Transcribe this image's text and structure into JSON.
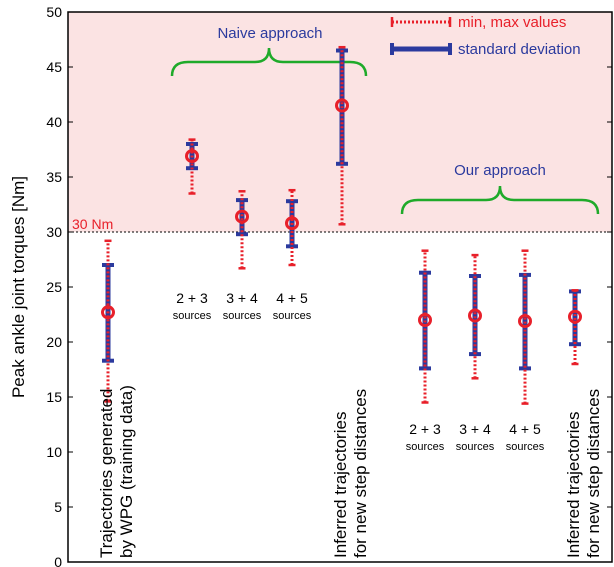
{
  "chart_data": {
    "type": "errorbar",
    "ylabel": "Peak ankle joint torques  [Nm]",
    "ylim": [
      0,
      50
    ],
    "yticks": [
      0,
      5,
      10,
      15,
      20,
      25,
      30,
      35,
      40,
      45,
      50
    ],
    "grid": false,
    "threshold": {
      "value": 30,
      "label": "30 Nm"
    },
    "legend": {
      "position": "top-right",
      "items": [
        {
          "label": "min, max values",
          "style": "dotted",
          "color": "#e8202a"
        },
        {
          "label": "standard deviation",
          "style": "solid",
          "color": "#2b3a9e"
        }
      ]
    },
    "groups": [
      {
        "label": "Naive approach",
        "color": "#2b3a9e",
        "bracket_color": "#1faa2a"
      },
      {
        "label": "Our approach",
        "color": "#2b3a9e",
        "bracket_color": "#1faa2a"
      }
    ],
    "points": [
      {
        "label_lines": [
          "Trajectories generated",
          "by WPG (training data)"
        ],
        "label_orientation": "vertical",
        "mean": 22.7,
        "std_low": 18.3,
        "std_high": 27.0,
        "min": 14.6,
        "max": 29.2
      },
      {
        "label_lines": [
          "2 + 3",
          "sources"
        ],
        "label_orientation": "horizontal",
        "mean": 36.9,
        "std_low": 35.8,
        "std_high": 38.0,
        "min": 33.5,
        "max": 38.4
      },
      {
        "label_lines": [
          "3 + 4",
          "sources"
        ],
        "label_orientation": "horizontal",
        "mean": 31.4,
        "std_low": 29.8,
        "std_high": 32.9,
        "min": 26.7,
        "max": 33.7
      },
      {
        "label_lines": [
          "4 + 5",
          "sources"
        ],
        "label_orientation": "horizontal",
        "mean": 30.8,
        "std_low": 28.7,
        "std_high": 32.8,
        "min": 27.0,
        "max": 33.8
      },
      {
        "label_lines": [
          "Inferred trajectories",
          "for new step distances"
        ],
        "label_orientation": "vertical",
        "mean": 41.5,
        "std_low": 36.2,
        "std_high": 46.5,
        "min": 30.7,
        "max": 46.8
      },
      {
        "label_lines": [
          "2 + 3",
          "sources"
        ],
        "label_orientation": "horizontal",
        "mean": 22.0,
        "std_low": 17.6,
        "std_high": 26.3,
        "min": 14.5,
        "max": 28.3
      },
      {
        "label_lines": [
          "3 + 4",
          "sources"
        ],
        "label_orientation": "horizontal",
        "mean": 22.4,
        "std_low": 18.9,
        "std_high": 26.0,
        "min": 16.7,
        "max": 27.9
      },
      {
        "label_lines": [
          "4 + 5",
          "sources"
        ],
        "label_orientation": "horizontal",
        "mean": 21.9,
        "std_low": 17.6,
        "std_high": 26.1,
        "min": 14.4,
        "max": 28.3
      },
      {
        "label_lines": [
          "Inferred trajectories",
          "for new step distances"
        ],
        "label_orientation": "vertical",
        "mean": 22.3,
        "std_low": 19.8,
        "std_high": 24.6,
        "min": 18.0,
        "max": 24.7
      }
    ]
  }
}
